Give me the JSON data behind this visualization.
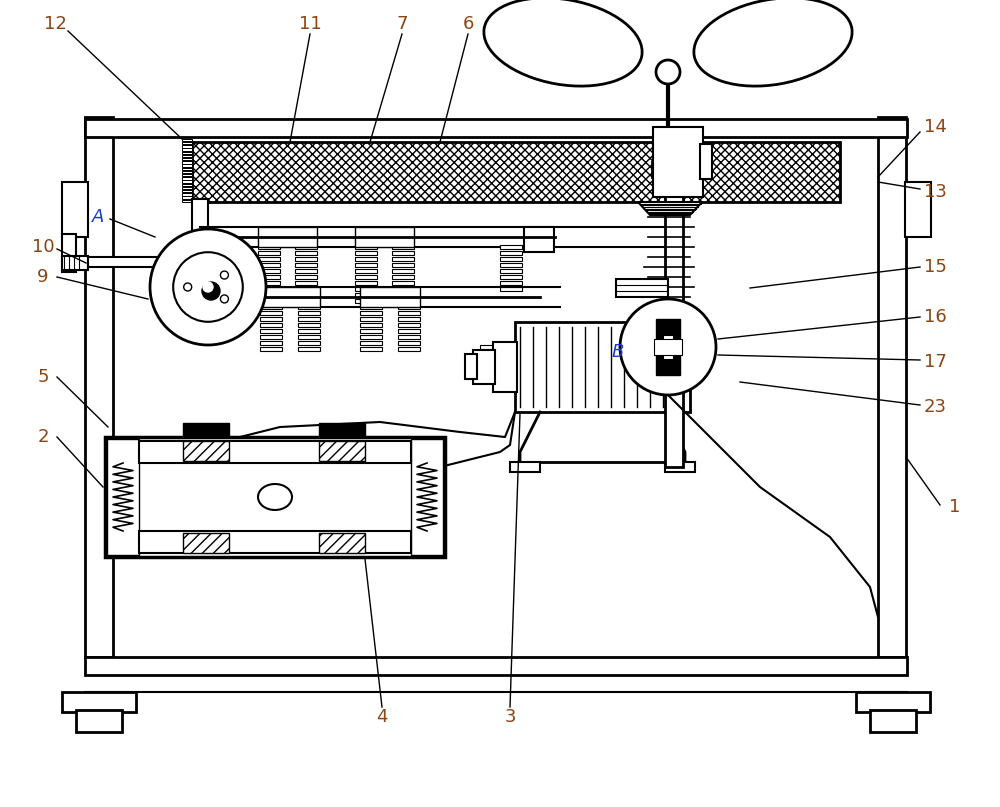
{
  "bg_color": "#ffffff",
  "number_color": "#8B4513",
  "letter_color": "#1a3ecc",
  "fig_width": 10.0,
  "fig_height": 8.07
}
